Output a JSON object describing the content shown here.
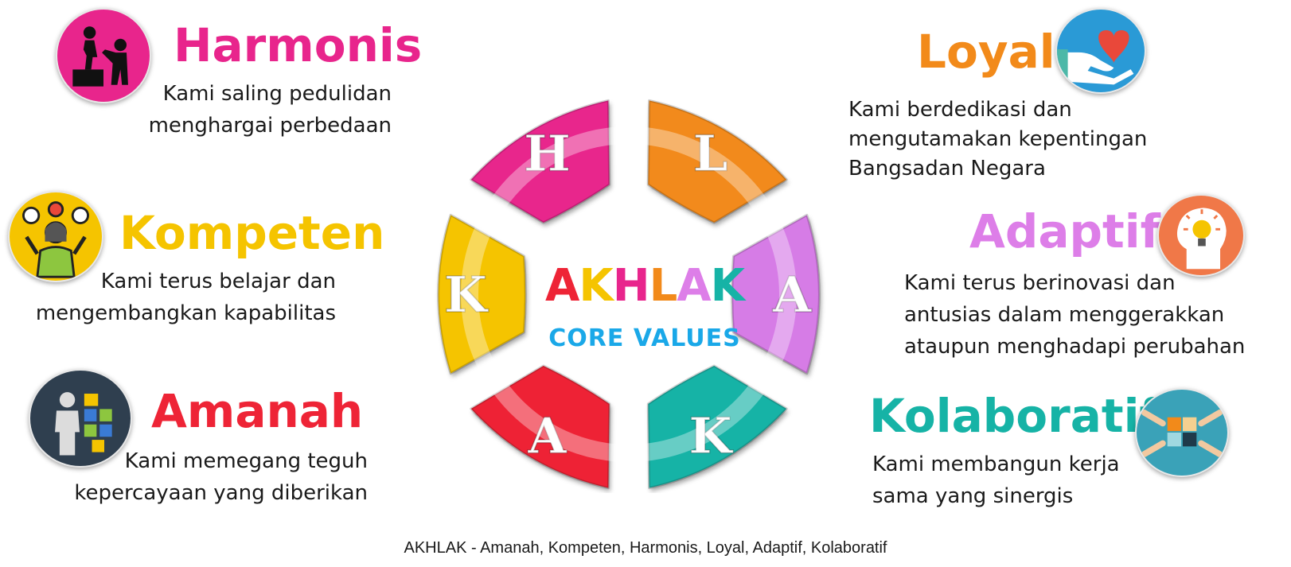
{
  "center": {
    "letters": [
      "A",
      "K",
      "H",
      "L",
      "A",
      "K"
    ],
    "subtitle": "CORE VALUES"
  },
  "values": {
    "harmonis": {
      "title": "Harmonis",
      "line1": "Kami saling pedulidan",
      "line2": "menghargai perbedaan",
      "color": "#e8258c",
      "icon": "teamwork-climb-icon"
    },
    "kompeten": {
      "title": "Kompeten",
      "line1": "Kami terus belajar dan",
      "line2": "mengembangkan kapabilitas",
      "color": "#f5c400",
      "icon": "skills-person-icon"
    },
    "amanah": {
      "title": "Amanah",
      "line1": "Kami memegang teguh",
      "line2": "kepercayaan yang diberikan",
      "color": "#ee2436",
      "icon": "puzzle-person-icon"
    },
    "loyal": {
      "title": "Loyal",
      "line1": "Kami berdedikasi dan",
      "line2": "mengutamakan kepentingan",
      "line3": "Bangsadan Negara",
      "color": "#f28a1a",
      "icon": "heart-hand-icon"
    },
    "adaptif": {
      "title": "Adaptif",
      "line1": "Kami terus berinovasi dan",
      "line2": "antusias dalam  menggerakkan",
      "line3": "ataupun menghadapi perubahan",
      "color": "#dd7ee8",
      "icon": "idea-head-icon"
    },
    "kolaboratif": {
      "title": "Kolaboratif",
      "line1": "Kami membangun kerja",
      "line2": "sama yang sinergis",
      "color": "#16b3a6",
      "icon": "hands-puzzle-icon"
    }
  },
  "petals": [
    {
      "letter": "H",
      "color": "#e8258c"
    },
    {
      "letter": "L",
      "color": "#f28a1a"
    },
    {
      "letter": "A",
      "color": "#d67ce6"
    },
    {
      "letter": "K",
      "color": "#16b3a6"
    },
    {
      "letter": "A",
      "color": "#ee2436"
    },
    {
      "letter": "K",
      "color": "#f5c400"
    }
  ],
  "caption": "AKHLAK - Amanah, Kompeten, Harmonis, Loyal, Adaptif, Kolaboratif",
  "colors": {
    "center_subtitle": "#1aa8e8"
  }
}
